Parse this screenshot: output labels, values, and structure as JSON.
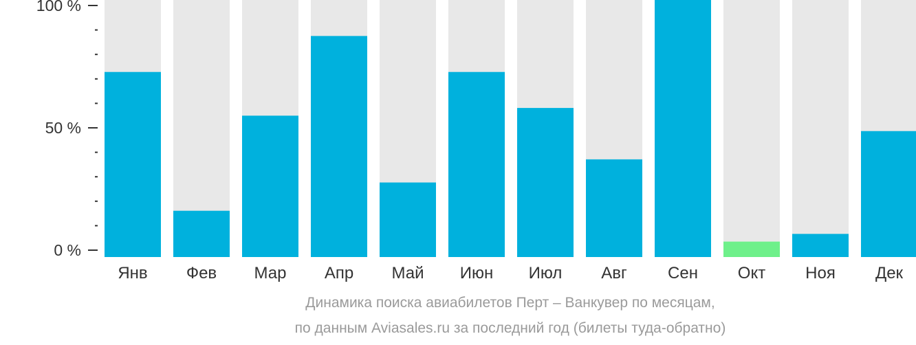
{
  "chart_data": {
    "type": "bar",
    "categories": [
      "Янв",
      "Фев",
      "Мар",
      "Апр",
      "Май",
      "Июн",
      "Июл",
      "Авг",
      "Сен",
      "Окт",
      "Ноя",
      "Дек"
    ],
    "values": [
      72,
      18,
      55,
      86,
      29,
      72,
      58,
      38,
      100,
      6,
      9,
      49
    ],
    "ylim": [
      0,
      100
    ],
    "yticks": [
      {
        "value": 0,
        "label": "0 %"
      },
      {
        "value": 50,
        "label": "50 %"
      },
      {
        "value": 100,
        "label": "100 %"
      }
    ],
    "minor_tick_step": 10,
    "colors": {
      "bar": "#00b1dd",
      "highlight_bar": "#6ef08a",
      "track": "#e8e8e8",
      "axis": "#333333",
      "label": "#333333"
    },
    "highlight_index": 9,
    "grid": false,
    "legend": "none"
  },
  "caption": {
    "line1": "Динамика поиска авиабилетов Перт – Ванкувер по месяцам,",
    "line2": "по данным Aviasales.ru за последний год (билеты туда-обратно)"
  }
}
